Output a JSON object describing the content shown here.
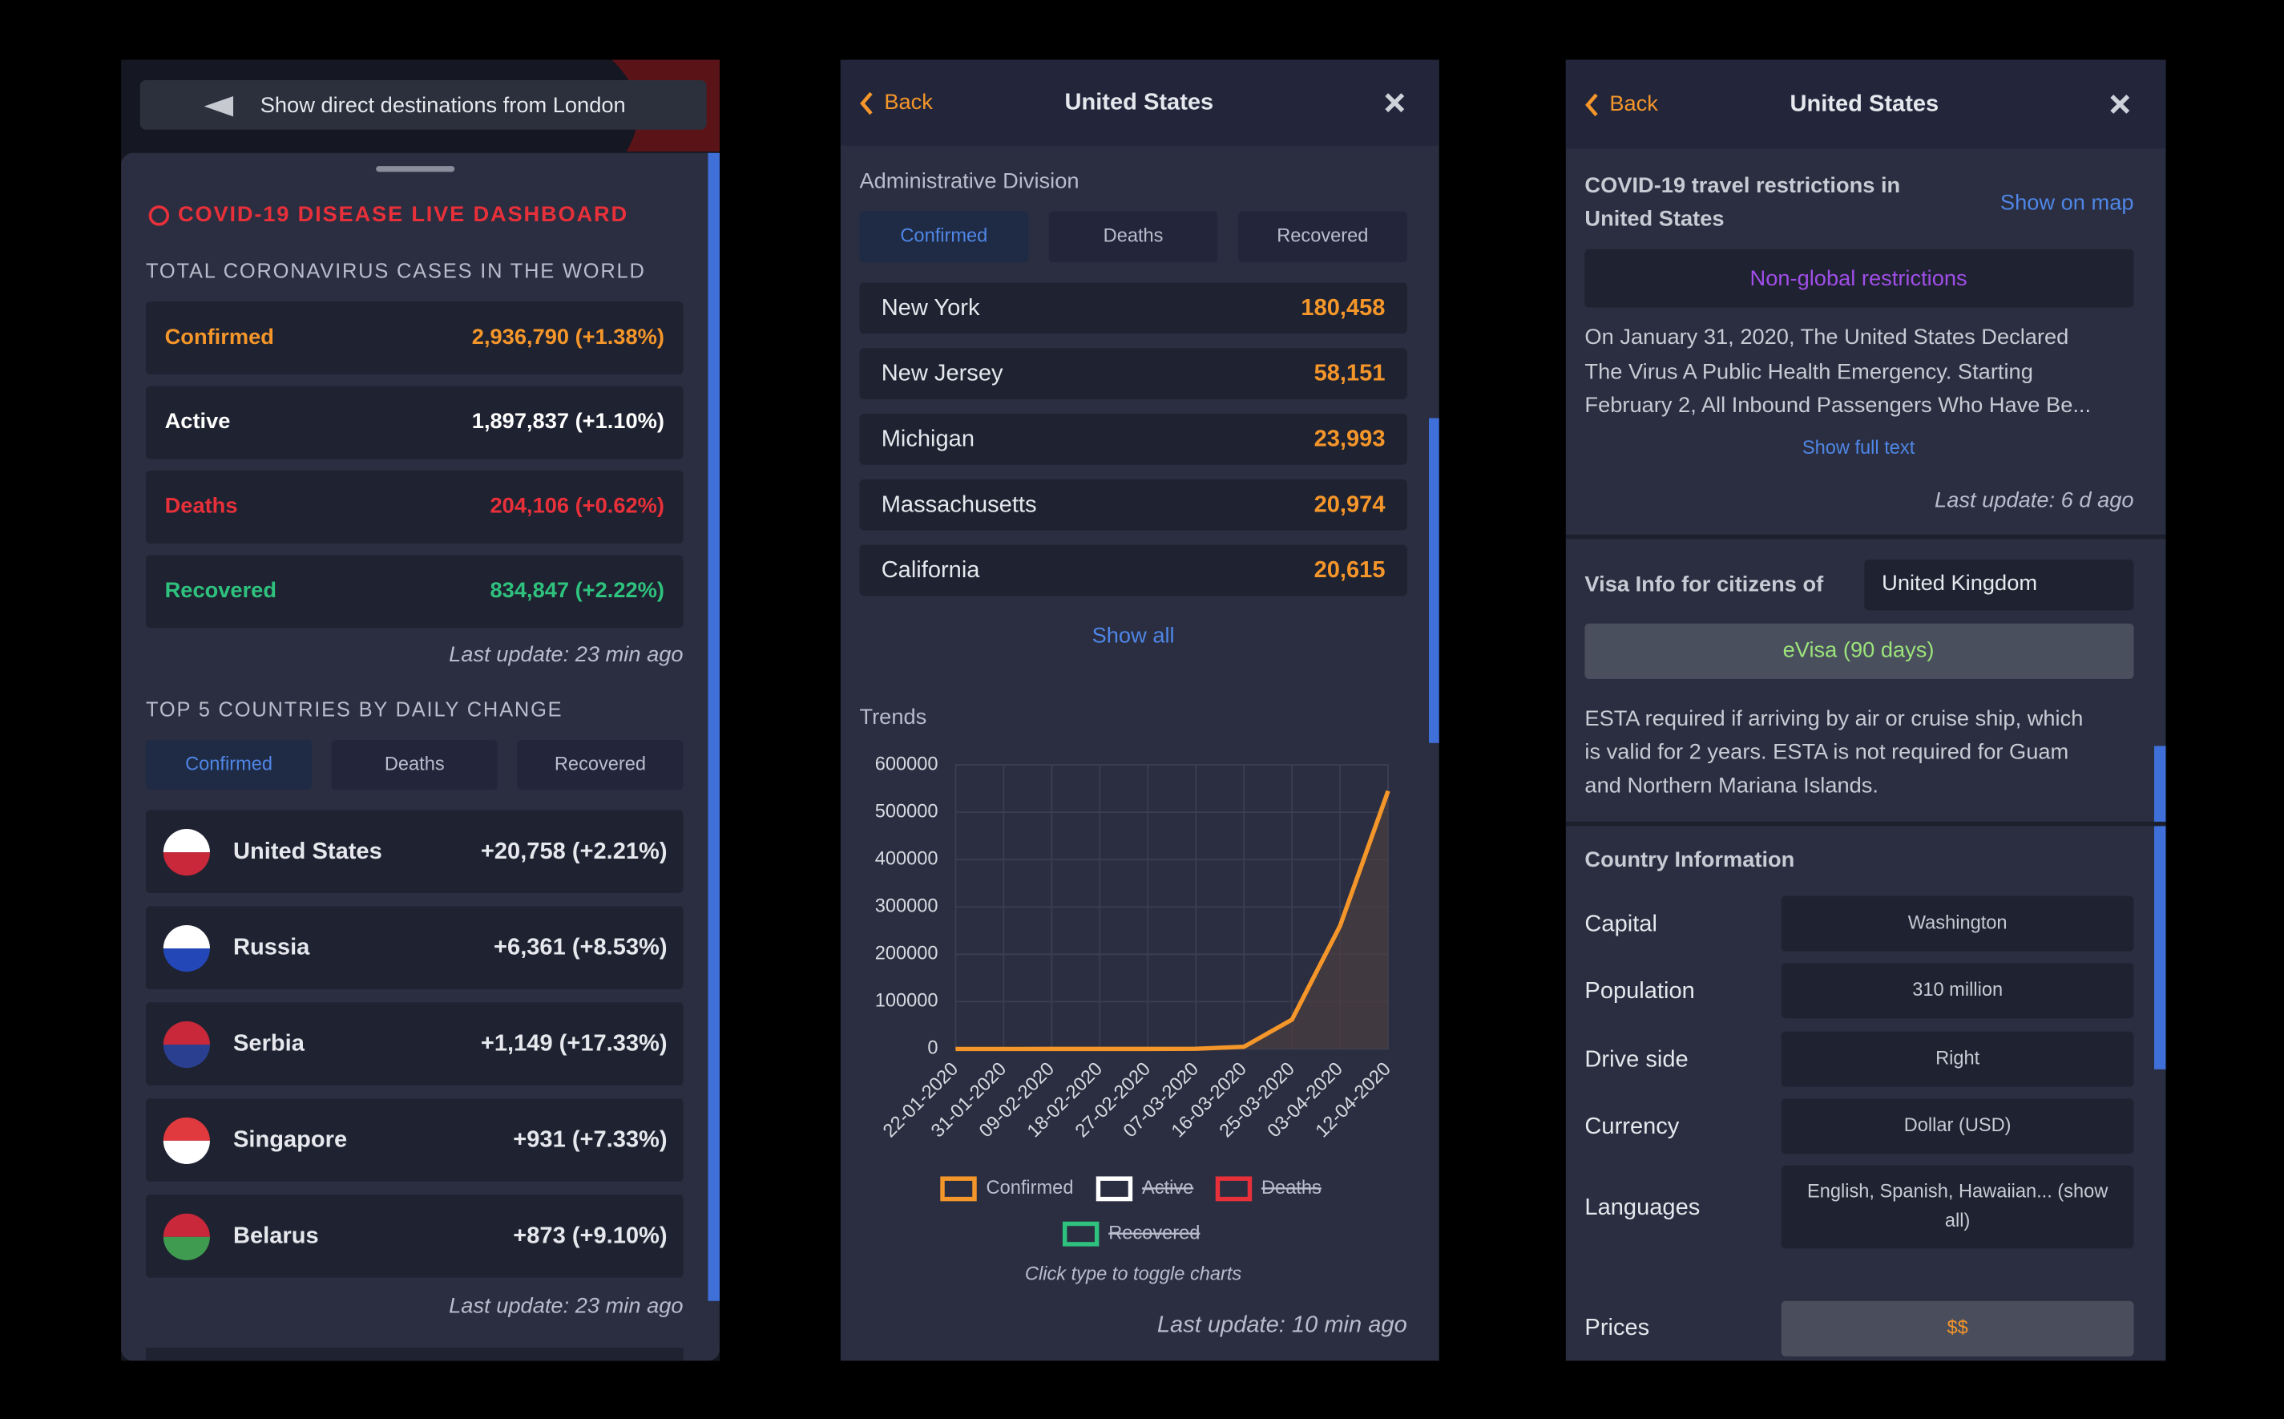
{
  "left_panel": {
    "banner": "Show direct destinations from London",
    "title": "COVID-19 DISEASE LIVE DASHBOARD",
    "totals_heading": "TOTAL CORONAVIRUS CASES IN THE WORLD",
    "totals": [
      {
        "label": "Confirmed",
        "value": "2,936,790 (+1.38%)",
        "color": "#f5962a"
      },
      {
        "label": "Active",
        "value": "1,897,837 (+1.10%)",
        "color": "#ffffff"
      },
      {
        "label": "Deaths",
        "value": "204,106 (+0.62%)",
        "color": "#e8303a"
      },
      {
        "label": "Recovered",
        "value": "834,847 (+2.22%)",
        "color": "#2ec27e"
      }
    ],
    "totals_update": "Last update: 23 min ago",
    "top_heading": "TOP 5 COUNTRIES BY DAILY CHANGE",
    "tabs": [
      "Confirmed",
      "Deaths",
      "Recovered"
    ],
    "countries": [
      {
        "name": "United States",
        "change": "+20,758 (+2.21%)"
      },
      {
        "name": "Russia",
        "change": "+6,361 (+8.53%)"
      },
      {
        "name": "Serbia",
        "change": "+1,149 (+17.33%)"
      },
      {
        "name": "Singapore",
        "change": "+931 (+7.33%)"
      },
      {
        "name": "Belarus",
        "change": "+873 (+9.10%)"
      }
    ],
    "countries_update": "Last update: 23 min ago"
  },
  "middle_panel": {
    "back": "Back",
    "title": "United States",
    "division_heading": "Administrative Division",
    "tabs": [
      "Confirmed",
      "Deaths",
      "Recovered"
    ],
    "divisions": [
      {
        "name": "New York",
        "value": "180,458"
      },
      {
        "name": "New Jersey",
        "value": "58,151"
      },
      {
        "name": "Michigan",
        "value": "23,993"
      },
      {
        "name": "Massachusetts",
        "value": "20,974"
      },
      {
        "name": "California",
        "value": "20,615"
      }
    ],
    "show_all": "Show all",
    "note": "Click type to toggle charts",
    "last_update": "Last update: 10 min ago"
  },
  "chart_data": {
    "type": "line",
    "title": "Trends",
    "x": [
      "22-01-2020",
      "31-01-2020",
      "09-02-2020",
      "18-02-2020",
      "27-02-2020",
      "07-03-2020",
      "16-03-2020",
      "25-03-2020",
      "03-04-2020",
      "12-04-2020"
    ],
    "series": [
      {
        "name": "Confirmed",
        "color": "#f5962a",
        "values": [
          1,
          7,
          11,
          13,
          60,
          400,
          4600,
          62000,
          260000,
          545000
        ]
      }
    ],
    "hidden_series": [
      {
        "name": "Active",
        "color": "#ffffff"
      },
      {
        "name": "Deaths",
        "color": "#e8303a"
      },
      {
        "name": "Recovered",
        "color": "#2ec27e"
      }
    ],
    "ylim": [
      0,
      600000
    ],
    "yticks": [
      0,
      100000,
      200000,
      300000,
      400000,
      500000,
      600000
    ],
    "grid": true
  },
  "right_panel": {
    "back": "Back",
    "title": "United States",
    "restrictions_title": [
      "COVID-19 travel restrictions in",
      "United States"
    ],
    "show_on_map": "Show on map",
    "restriction_type": "Non-global restrictions",
    "restriction_text": [
      "On January 31, 2020, The United States Declared",
      "The Virus A Public Health Emergency. Starting",
      "February 2, All Inbound Passengers Who Have Be..."
    ],
    "show_full_text": "Show full text",
    "restrictions_update": "Last update: 6 d ago",
    "visa_label": "Visa Info for citizens of",
    "visa_country": "United Kingdom",
    "visa_type": "eVisa (90 days)",
    "visa_text": [
      "ESTA required if arriving by air or cruise ship, which",
      "is valid for 2 years. ESTA is not required for Guam",
      "and Northern Mariana Islands."
    ],
    "country_heading": "Country Information",
    "info": [
      {
        "label": "Capital",
        "value": [
          "Washington"
        ]
      },
      {
        "label": "Population",
        "value": [
          "310 million"
        ]
      },
      {
        "label": "Drive side",
        "value": [
          "Right"
        ]
      },
      {
        "label": "Currency",
        "value": [
          "Dollar (USD)"
        ]
      },
      {
        "label": "Languages",
        "value": [
          "English, Spanish, Hawaiian... (show",
          "all)"
        ]
      },
      {
        "label": "Prices",
        "value": [
          "$$"
        ]
      }
    ]
  }
}
